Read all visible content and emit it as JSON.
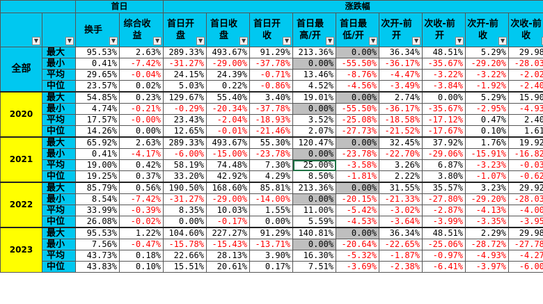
{
  "headers": {
    "group_first_day": "首日",
    "group_change": "涨跌幅",
    "columns": [
      "换手",
      "综合收\n益",
      "首日开\n盘",
      "首日收\n盘",
      "首日开\n收",
      "首日最\n高/开",
      "首日最\n低/开",
      "次开-前\n开",
      "次收-前\n开",
      "次开-前\n收",
      "次收-前\n收"
    ]
  },
  "blocks": [
    {
      "label": "全部",
      "rows": [
        {
          "stat": "最大",
          "v": [
            "95.53%",
            "2.63%",
            "289.33%",
            "493.67%",
            "91.29%",
            "213.36%",
            "0.00%",
            "36.34%",
            "48.51%",
            "5.29%",
            "29.98%"
          ]
        },
        {
          "stat": "最小",
          "v": [
            "0.41%",
            "-7.42%",
            "-31.27%",
            "-29.00%",
            "-37.78%",
            "0.00%",
            "-55.50%",
            "-36.17%",
            "-35.67%",
            "-29.20%",
            "-28.03%"
          ]
        },
        {
          "stat": "平均",
          "v": [
            "29.65%",
            "-0.04%",
            "24.15%",
            "24.39%",
            "-0.71%",
            "13.46%",
            "-8.76%",
            "-4.47%",
            "-3.22%",
            "-3.22%",
            "-2.02%"
          ]
        },
        {
          "stat": "中位",
          "v": [
            "23.57%",
            "0.02%",
            "5.03%",
            "0.22%",
            "-0.86%",
            "4.52%",
            "-4.56%",
            "-3.49%",
            "-3.84%",
            "-1.92%",
            "-2.40%"
          ]
        }
      ]
    },
    {
      "label": "2020",
      "rows": [
        {
          "stat": "最大",
          "v": [
            "54.85%",
            "0.23%",
            "129.67%",
            "55.40%",
            "3.40%",
            "19.01%",
            "0.00%",
            "2.74%",
            "0.00%",
            "5.29%",
            "15.90%"
          ]
        },
        {
          "stat": "最小",
          "v": [
            "4.74%",
            "-0.21%",
            "-0.29%",
            "-20.34%",
            "-37.78%",
            "0.00%",
            "-55.50%",
            "-36.17%",
            "-35.67%",
            "-2.95%",
            "-4.93%"
          ]
        },
        {
          "stat": "平均",
          "v": [
            "17.57%",
            "-0.00%",
            "23.43%",
            "-2.04%",
            "-18.93%",
            "3.52%",
            "-25.08%",
            "-18.58%",
            "-17.12%",
            "0.47%",
            "2.40%"
          ]
        },
        {
          "stat": "中位",
          "v": [
            "14.26%",
            "0.00%",
            "12.65%",
            "-0.01%",
            "-21.46%",
            "2.07%",
            "-27.73%",
            "-21.52%",
            "-17.67%",
            "0.10%",
            "1.61%"
          ]
        }
      ]
    },
    {
      "label": "2021",
      "rows": [
        {
          "stat": "最大",
          "v": [
            "65.92%",
            "2.63%",
            "289.33%",
            "493.67%",
            "55.30%",
            "120.47%",
            "0.00%",
            "32.45%",
            "37.92%",
            "1.76%",
            "19.92%"
          ]
        },
        {
          "stat": "最小",
          "v": [
            "0.41%",
            "-4.17%",
            "-6.00%",
            "-15.00%",
            "-23.78%",
            "0.00%",
            "-23.78%",
            "-22.70%",
            "-29.06%",
            "-15.91%",
            "-16.82%"
          ]
        },
        {
          "stat": "平均",
          "v": [
            "19.00%",
            "0.42%",
            "58.19%",
            "74.48%",
            "7.30%",
            "25.00%",
            "-3.58%",
            "3.26%",
            "6.87%",
            "-3.23%",
            "-0.03%"
          ]
        },
        {
          "stat": "中位",
          "v": [
            "19.25%",
            "0.37%",
            "33.20%",
            "42.92%",
            "4.29%",
            "8.50%",
            "-1.81%",
            "2.22%",
            "3.80%",
            "-1.07%",
            "-0.62%"
          ]
        }
      ]
    },
    {
      "label": "2022",
      "rows": [
        {
          "stat": "最大",
          "v": [
            "85.79%",
            "0.56%",
            "190.50%",
            "168.60%",
            "85.81%",
            "213.36%",
            "0.00%",
            "31.55%",
            "35.57%",
            "3.23%",
            "29.92%"
          ]
        },
        {
          "stat": "最小",
          "v": [
            "8.54%",
            "-7.42%",
            "-31.27%",
            "-29.00%",
            "-14.00%",
            "0.00%",
            "-20.15%",
            "-21.33%",
            "-27.80%",
            "-29.20%",
            "-28.03%"
          ]
        },
        {
          "stat": "平均",
          "v": [
            "33.99%",
            "-0.39%",
            "8.35%",
            "10.03%",
            "1.55%",
            "11.00%",
            "-5.42%",
            "-3.02%",
            "-2.87%",
            "-4.13%",
            "-4.00%"
          ]
        },
        {
          "stat": "中位",
          "v": [
            "26.08%",
            "-0.02%",
            "0.00%",
            "-0.17%",
            "0.00%",
            "5.59%",
            "-4.53%",
            "-3.64%",
            "-3.99%",
            "-3.35%",
            "-3.95%"
          ]
        }
      ]
    },
    {
      "label": "2023",
      "rows": [
        {
          "stat": "最大",
          "v": [
            "95.53%",
            "1.22%",
            "104.60%",
            "227.27%",
            "91.29%",
            "140.81%",
            "0.00%",
            "36.34%",
            "48.51%",
            "2.29%",
            "29.98%"
          ]
        },
        {
          "stat": "最小",
          "v": [
            "7.56%",
            "-0.47%",
            "-15.78%",
            "-15.43%",
            "-13.71%",
            "0.00%",
            "-20.64%",
            "-22.65%",
            "-25.06%",
            "-28.72%",
            "-27.78%"
          ]
        },
        {
          "stat": "平均",
          "v": [
            "43.73%",
            "0.18%",
            "22.66%",
            "28.13%",
            "3.90%",
            "16.30%",
            "-5.32%",
            "-1.87%",
            "-0.97%",
            "-4.93%",
            "-4.27%"
          ]
        },
        {
          "stat": "中位",
          "v": [
            "43.83%",
            "0.10%",
            "15.51%",
            "20.61%",
            "0.17%",
            "7.51%",
            "-3.69%",
            "-2.38%",
            "-6.41%",
            "-3.97%",
            "-6.00%"
          ]
        }
      ]
    }
  ]
}
